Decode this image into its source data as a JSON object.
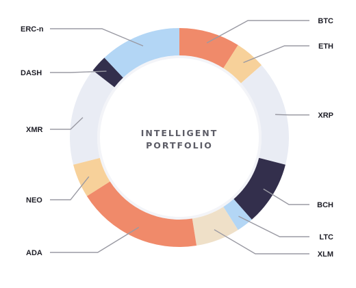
{
  "center_text": [
    "INTELLIGENT",
    "PORTFOLIO"
  ],
  "colors": {
    "orange": "#f08a6a",
    "peach": "#f7d19a",
    "lavender": "#e9ecf4",
    "navy": "#332f4c",
    "sky": "#b3d6f5",
    "sand": "#efe0c8",
    "leader": "#9a9aa3",
    "label": "#1d1d26"
  },
  "chart_data": {
    "type": "pie",
    "variant": "donut",
    "title": "INTELLIGENT PORTFOLIO",
    "slices": [
      {
        "label": "BTC",
        "value": 9.0,
        "color": "#f08a6a"
      },
      {
        "label": "ETH",
        "value": 4.5,
        "color": "#f7d19a"
      },
      {
        "label": "XRP",
        "value": 15.5,
        "color": "#e9ecf4"
      },
      {
        "label": "BCH",
        "value": 9.5,
        "color": "#332f4c"
      },
      {
        "label": "LTC",
        "value": 2.5,
        "color": "#b3d6f5"
      },
      {
        "label": "XLM",
        "value": 6.5,
        "color": "#efe0c8"
      },
      {
        "label": "ADA",
        "value": 18.5,
        "color": "#f08a6a"
      },
      {
        "label": "NEO",
        "value": 5.0,
        "color": "#f7d19a"
      },
      {
        "label": "XMR",
        "value": 14.5,
        "color": "#e9ecf4"
      },
      {
        "label": "DASH",
        "value": 2.5,
        "color": "#332f4c"
      },
      {
        "label": "ERC-n",
        "value": 12.0,
        "color": "#b3d6f5"
      }
    ]
  }
}
